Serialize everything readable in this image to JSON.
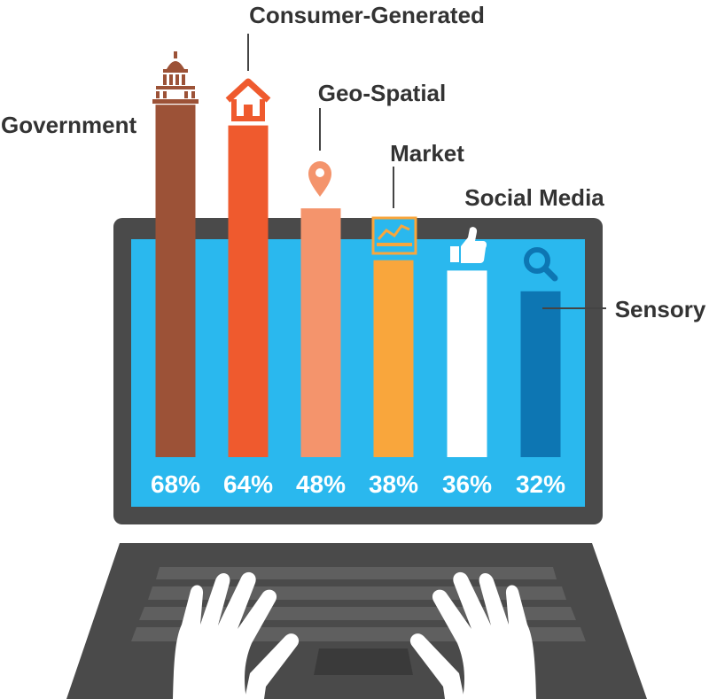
{
  "chart_data": {
    "type": "bar",
    "categories": [
      "Government",
      "Consumer-Generated",
      "Geo-Spatial",
      "Market",
      "Social Media",
      "Sensory"
    ],
    "values": [
      68,
      64,
      48,
      38,
      36,
      32
    ],
    "value_labels": [
      "68%",
      "64%",
      "48%",
      "38%",
      "36%",
      "32%"
    ],
    "unit": "%",
    "colors": [
      "#9c5237",
      "#ef5a2e",
      "#f4946c",
      "#f9a63c",
      "#ffffff",
      "#0d76b3"
    ],
    "icons": [
      "capitol-building-icon",
      "house-icon",
      "map-pin-icon",
      "stock-chart-icon",
      "thumbs-up-icon",
      "magnifier-icon"
    ],
    "grid": false,
    "legend": "none"
  },
  "colors": {
    "laptop_frame": "#4a4a4a",
    "screen": "#2ab8ee",
    "keyboard": "#4a4a4a",
    "keys": "#5f5f5f",
    "hands": "#ffffff"
  }
}
